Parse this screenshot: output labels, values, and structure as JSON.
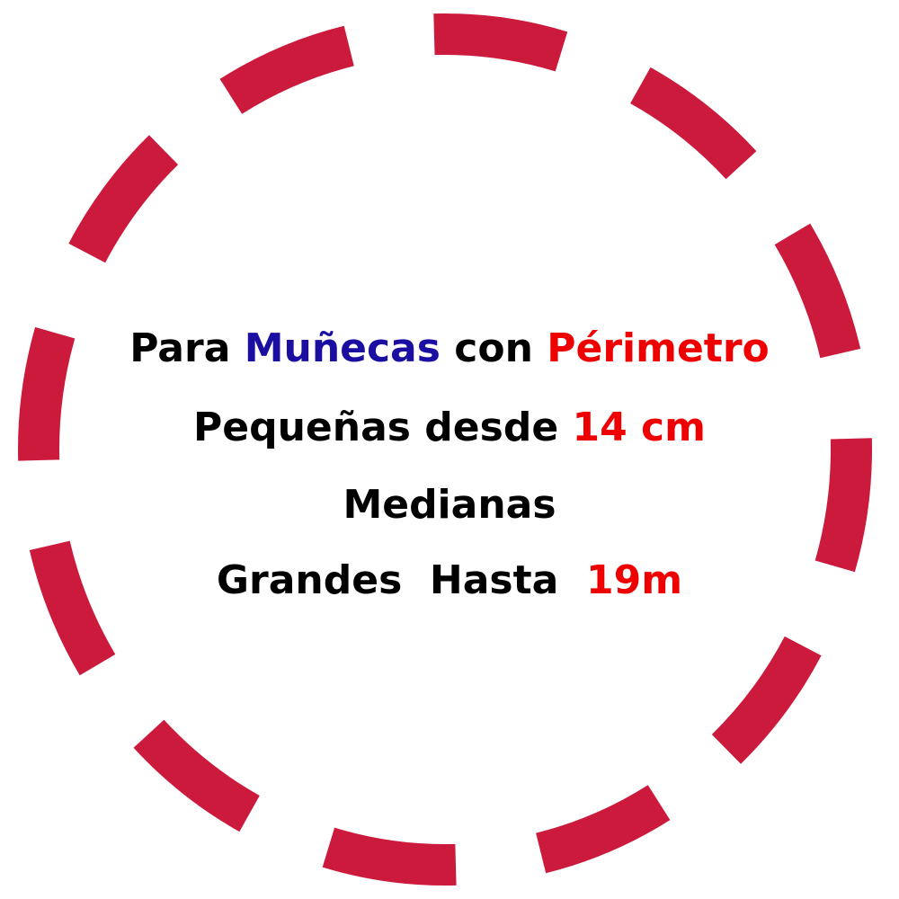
{
  "lines": [
    [
      {
        "text": "Para ",
        "color": "#000000"
      },
      {
        "text": "Muñecas",
        "color": "#1a0fa0"
      },
      {
        "text": " con ",
        "color": "#000000"
      },
      {
        "text": "Périmetro",
        "color": "#ee0000"
      }
    ],
    [
      {
        "text": "Pequeñas desde ",
        "color": "#000000"
      },
      {
        "text": "14 cm",
        "color": "#ee0000"
      }
    ],
    [
      {
        "text": "Medianas",
        "color": "#000000"
      }
    ],
    [
      {
        "text": "Grandes  Hasta  ",
        "color": "#000000"
      },
      {
        "text": "19m",
        "color": "#ee0000"
      }
    ]
  ]
}
